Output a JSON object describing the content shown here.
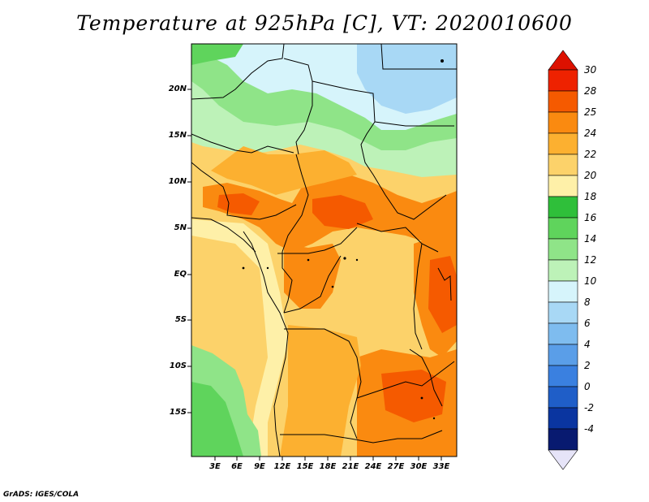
{
  "map": {
    "title": "Temperature at 925hPa [C], VT: 2020010600",
    "credit": "GrADS: IGES/COLA",
    "lat_labels": [
      "20N",
      "15N",
      "10N",
      "5N",
      "EQ",
      "5S",
      "10S",
      "15S"
    ],
    "lon_labels": [
      "3E",
      "6E",
      "9E",
      "12E",
      "15E",
      "18E",
      "21E",
      "24E",
      "27E",
      "30E",
      "33E"
    ],
    "colorbar": {
      "labels": [
        "30",
        "28",
        "25",
        "24",
        "22",
        "20",
        "18",
        "16",
        "14",
        "12",
        "10",
        "8",
        "6",
        "4",
        "2",
        "0",
        "-2",
        "-4"
      ],
      "colors": [
        "#ee2200",
        "#f55a00",
        "#fa8a10",
        "#fcb030",
        "#fcd26a",
        "#fef0a8",
        "#2fbf3a",
        "#5fd45c",
        "#8fe488",
        "#bdf2b8",
        "#d6f4fb",
        "#a8d8f5",
        "#7ebcef",
        "#5a9ee8",
        "#3a80e0",
        "#1f5ec8",
        "#0a35a0",
        "#081a70"
      ],
      "top_arrow_color": "#dd1100",
      "bottom_arrow_color": "#e6e4f8"
    }
  }
}
